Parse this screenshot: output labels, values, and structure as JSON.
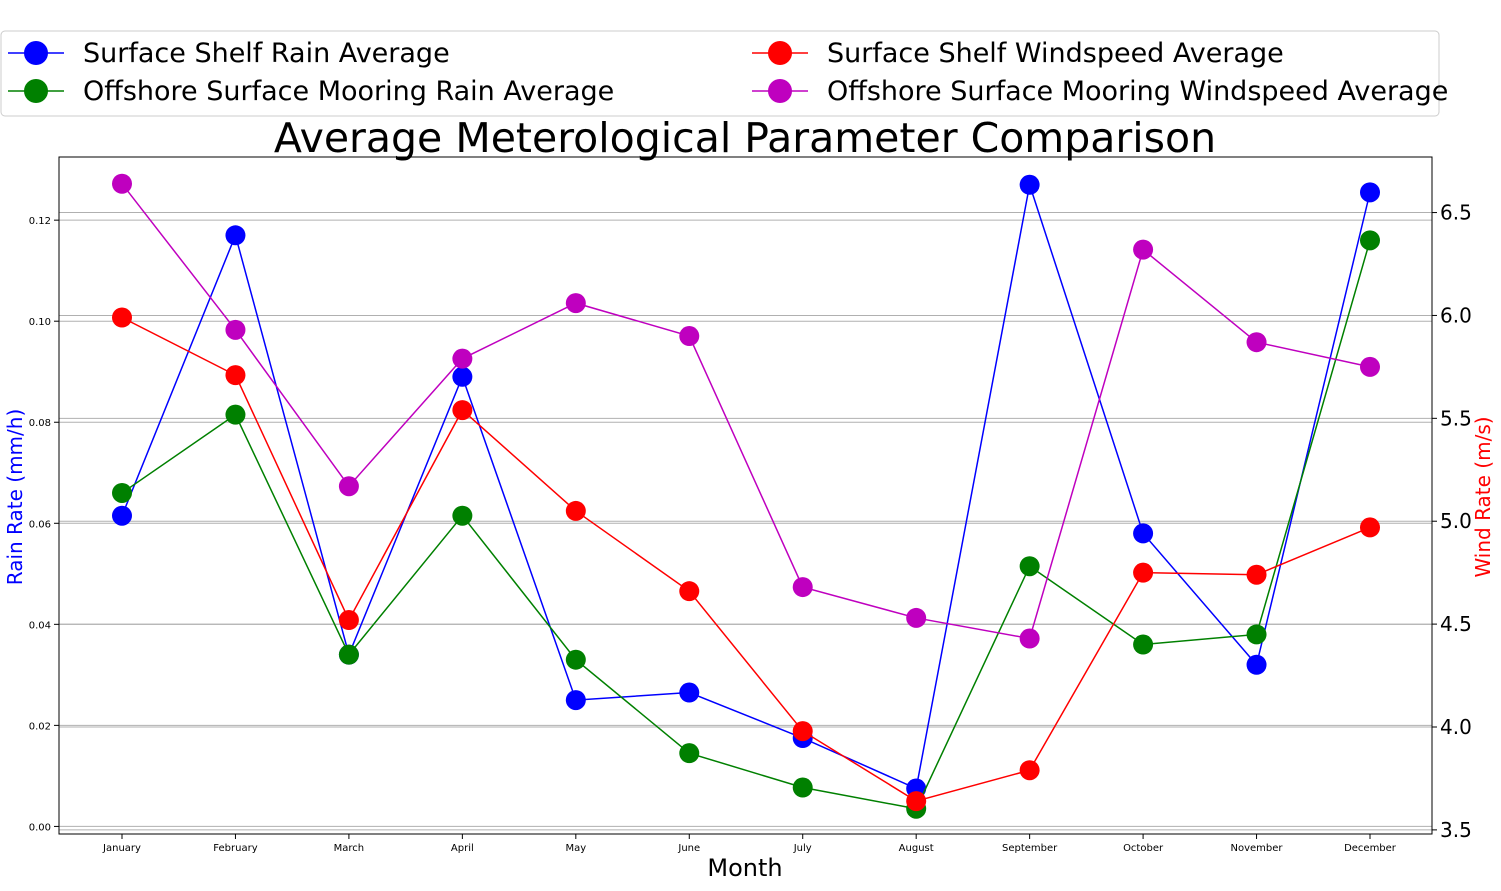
{
  "chart_data": {
    "type": "line",
    "title": "Average Meterological Parameter Comparison",
    "xlabel": "Month",
    "ylabel_left": "Rain Rate (mm/h)",
    "ylabel_right": "Wind Rate (m/s)",
    "categories": [
      "January",
      "February",
      "March",
      "April",
      "May",
      "June",
      "July",
      "August",
      "September",
      "October",
      "November",
      "December"
    ],
    "ylim_left": [
      -0.0015,
      0.1325
    ],
    "ylim_right": [
      3.48,
      6.77
    ],
    "yticks_left": [
      "0.00",
      "0.02",
      "0.04",
      "0.06",
      "0.08",
      "0.10",
      "0.12"
    ],
    "yticks_right": [
      "3.5",
      "4.0",
      "4.5",
      "5.0",
      "5.5",
      "6.0",
      "6.5"
    ],
    "grid": true,
    "legend_position": "top",
    "series": [
      {
        "name": "Surface Shelf Rain Average",
        "axis": "left",
        "color": "#0000ff",
        "values": [
          0.0615,
          0.117,
          0.034,
          0.089,
          0.025,
          0.0265,
          0.0175,
          0.0075,
          0.127,
          0.058,
          0.032,
          0.1255
        ]
      },
      {
        "name": "Offshore Surface Mooring Rain Average",
        "axis": "left",
        "color": "#008000",
        "values": [
          0.066,
          0.0815,
          0.034,
          0.0615,
          0.033,
          0.0145,
          0.0077,
          0.0035,
          0.0515,
          0.036,
          0.038,
          0.116
        ]
      },
      {
        "name": "Surface Shelf Windspeed Average",
        "axis": "right",
        "color": "#ff0000",
        "values": [
          5.99,
          5.71,
          4.52,
          5.54,
          5.05,
          4.66,
          3.98,
          3.64,
          3.79,
          4.75,
          4.74,
          4.97
        ]
      },
      {
        "name": "Offshore Surface Mooring Windspeed Average",
        "axis": "right",
        "color": "#bf00bf",
        "values": [
          6.64,
          5.93,
          5.17,
          5.79,
          6.06,
          5.9,
          4.68,
          4.53,
          4.43,
          6.32,
          5.87,
          5.75
        ]
      }
    ]
  },
  "colors": {
    "left_axis_label": "#0000ff",
    "right_axis_label": "#ff0000"
  }
}
